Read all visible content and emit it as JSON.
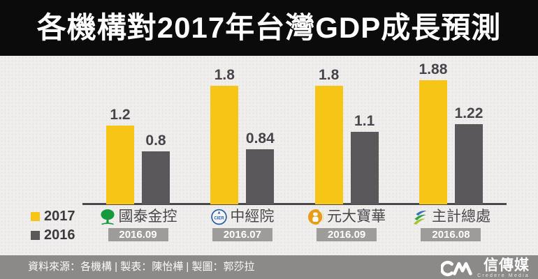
{
  "title": "各機構對2017年台灣GDP成長預測",
  "legend": {
    "items": [
      {
        "label": "2017",
        "color": "#f6c516"
      },
      {
        "label": "2016",
        "color": "#5a585a"
      }
    ]
  },
  "chart_data": {
    "type": "bar",
    "title": "各機構對2017年台灣GDP成長預測",
    "categories": [
      "國泰金控",
      "中經院",
      "元大寶華",
      "主計總處"
    ],
    "category_dates": [
      "2016.09",
      "2016.07",
      "2016.09",
      "2016.08"
    ],
    "category_icons": [
      "cathay-tree-icon",
      "cier-seal-icon",
      "yuanta-coin-icon",
      "dgbas-swoosh-icon"
    ],
    "series": [
      {
        "name": "2017",
        "color": "#f6c516",
        "values": [
          1.2,
          1.8,
          1.8,
          1.88
        ]
      },
      {
        "name": "2016",
        "color": "#5a585a",
        "values": [
          0.8,
          0.84,
          1.1,
          1.22
        ]
      }
    ],
    "value_labels": [
      "1.2",
      "0.8",
      "1.8",
      "0.84",
      "1.8",
      "1.1",
      "1.88",
      "1.22"
    ],
    "xlabel": "",
    "ylabel": "",
    "ylim": [
      0,
      2
    ],
    "grid": false,
    "legend_position": "bottom-left"
  },
  "footer": {
    "credit": "資料來源：各機構 | 製表：陳怡樺 | 製圖：郭莎拉",
    "logo_mark": "CM",
    "logo_text": "信傳媒",
    "logo_subtext": "Credere Media"
  }
}
